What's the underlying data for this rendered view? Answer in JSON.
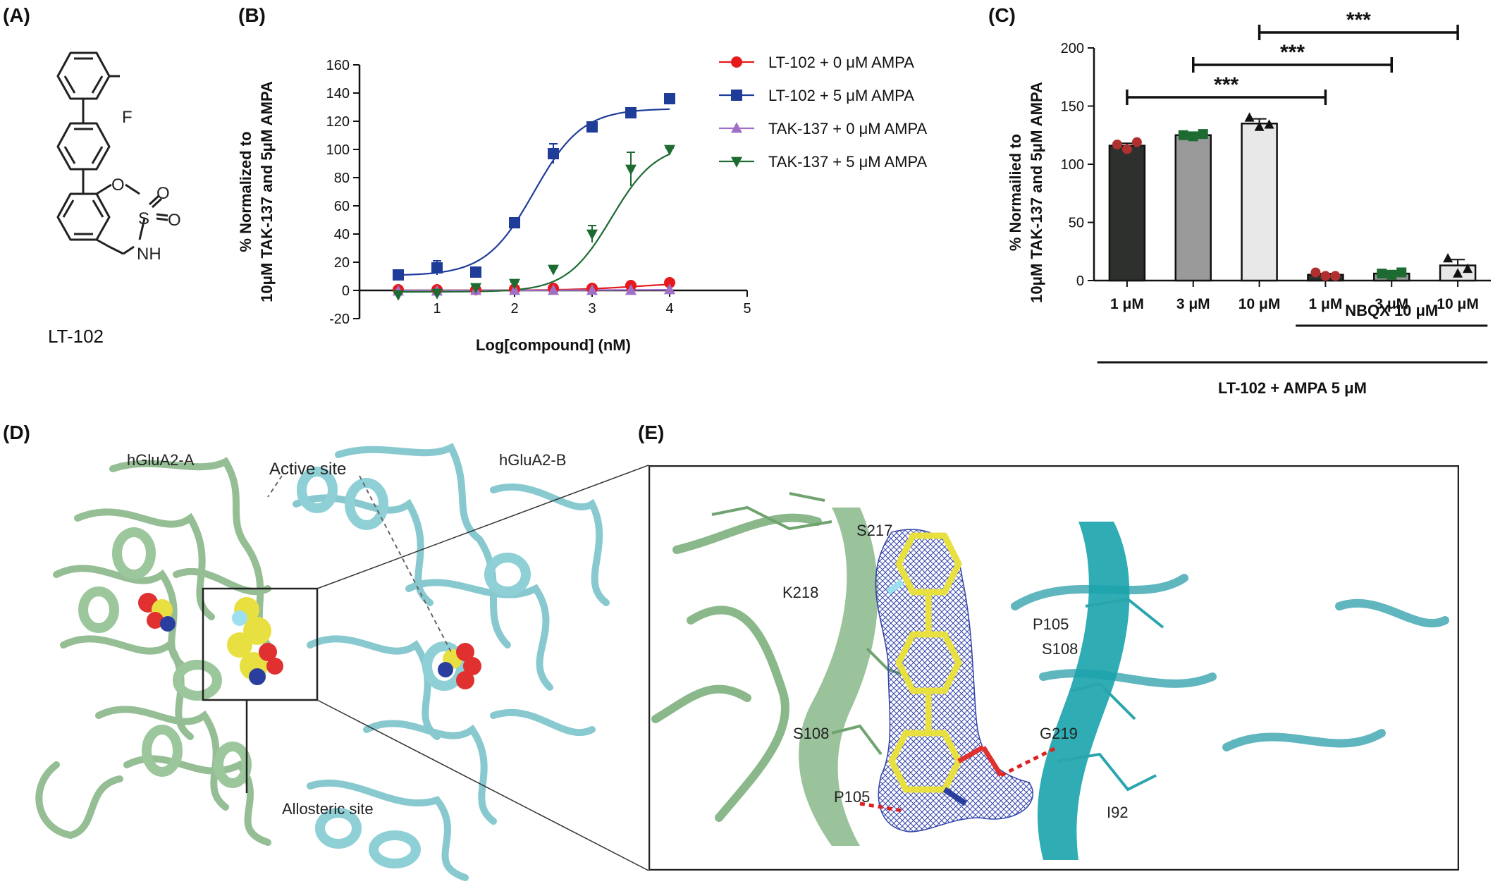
{
  "panels": {
    "A": {
      "label": "(A)",
      "compound_name": "LT-102",
      "atom_labels": {
        "F": "F",
        "O": "O",
        "S": "S",
        "O1": "O",
        "O2": "O",
        "NH": "NH"
      }
    },
    "B": {
      "label": "(B)"
    },
    "C": {
      "label": "(C)"
    },
    "D": {
      "label": "(D)",
      "subunit_a": "hGluA2-A",
      "subunit_b": "hGluA2-B",
      "active_site": "Active site",
      "allosteric_site": "Allosteric site"
    },
    "E": {
      "label": "(E)",
      "residues": [
        "S217",
        "K218",
        "P105",
        "S108",
        "S108",
        "G219",
        "P105",
        "I92"
      ]
    }
  },
  "chart_data": [
    {
      "type": "line",
      "panel": "B",
      "title": "",
      "xlabel": "Log[compound] (nM)",
      "ylabel": [
        "% Normalized to",
        "10μM TAK-137 and 5μM AMPA"
      ],
      "xlim": [
        0,
        5
      ],
      "ylim": [
        -20,
        160
      ],
      "xticks": [
        1,
        2,
        3,
        4,
        5
      ],
      "yticks": [
        -20,
        0,
        20,
        40,
        60,
        80,
        100,
        120,
        140,
        160
      ],
      "legend_position": "right",
      "series": [
        {
          "name": "LT-102 + 0 μM AMPA",
          "color": "#e41a1c",
          "marker": "circle",
          "x": [
            0.5,
            1.0,
            1.5,
            2.0,
            2.5,
            3.0,
            3.5,
            4.0
          ],
          "y": [
            0.5,
            0.5,
            0.5,
            1.0,
            1.5,
            1.5,
            3.5,
            5.5
          ],
          "fit": {
            "bottom": 0,
            "top": 6,
            "ec50_log": 3.6,
            "hill": 1
          }
        },
        {
          "name": "LT-102 + 5 μM AMPA",
          "color": "#1f3c99",
          "marker": "square",
          "x": [
            0.5,
            1.0,
            1.5,
            2.0,
            2.5,
            3.0,
            3.5,
            4.0
          ],
          "y": [
            11,
            16,
            13,
            48,
            97,
            116,
            126,
            136
          ],
          "err": [
            2,
            5,
            2,
            2,
            7,
            2,
            2,
            2
          ],
          "fit": {
            "bottom": 10.5,
            "top": 129,
            "ec50_log": 2.25,
            "hill": 1.4
          }
        },
        {
          "name": "TAK-137 + 0 μM AMPA",
          "color": "#a070c8",
          "marker": "triangle-up",
          "x": [
            0.5,
            1.0,
            1.5,
            2.0,
            2.5,
            3.0,
            3.5,
            4.0
          ],
          "y": [
            -0.5,
            -0.5,
            0,
            0,
            0,
            0,
            0,
            0.5
          ],
          "fit": {
            "bottom": 0,
            "top": 0.5,
            "ec50_log": 3,
            "hill": 1
          }
        },
        {
          "name": "TAK-137 + 5 μM AMPA",
          "color": "#1e6b32",
          "marker": "triangle-down",
          "x": [
            0.5,
            1.0,
            1.5,
            2.0,
            2.5,
            3.0,
            3.5,
            4.0
          ],
          "y": [
            -3,
            -2,
            2,
            5,
            15,
            40,
            86,
            100
          ],
          "err": [
            1,
            1,
            1,
            1,
            1,
            6,
            12,
            1
          ],
          "fit": {
            "bottom": -1,
            "top": 104,
            "ec50_log": 3.25,
            "hill": 1.5
          }
        }
      ]
    },
    {
      "type": "bar",
      "panel": "C",
      "title": "",
      "ylabel": [
        "% Normailied to",
        "10μM TAK-137 and 5μM AMPA"
      ],
      "ylim": [
        0,
        200
      ],
      "yticks": [
        0,
        50,
        100,
        150,
        200
      ],
      "categories": [
        "1 μM",
        "3 μM",
        "10 μM",
        "1 μM",
        "3 μM",
        "10 μM"
      ],
      "values": [
        116,
        125,
        135,
        5,
        6,
        13
      ],
      "errors": [
        2,
        2,
        4,
        1,
        1,
        5
      ],
      "bar_colors": [
        "#2d302d",
        "#9a9a9a",
        "#e8e8e8",
        "#2d302d",
        "#9a9a9a",
        "#e8e8e8"
      ],
      "points": [
        {
          "color": "#b03030",
          "shape": "circle",
          "values": [
            117,
            113,
            119
          ]
        },
        {
          "color": "#1e6b32",
          "shape": "square",
          "values": [
            125,
            124,
            126
          ]
        },
        {
          "color": "#111111",
          "shape": "triangle",
          "values": [
            140,
            132,
            134
          ]
        },
        {
          "color": "#b03030",
          "shape": "circle",
          "values": [
            7,
            4,
            4
          ]
        },
        {
          "color": "#1e6b32",
          "shape": "square",
          "values": [
            6,
            5,
            7
          ]
        },
        {
          "color": "#111111",
          "shape": "triangle",
          "values": [
            19,
            6,
            10
          ]
        }
      ],
      "significance": [
        {
          "from": 0,
          "to": 3,
          "label": "***"
        },
        {
          "from": 1,
          "to": 4,
          "label": "***"
        },
        {
          "from": 2,
          "to": 5,
          "label": "***"
        }
      ],
      "group_labels": [
        {
          "text": "NBQX 10 μM",
          "from": 3,
          "to": 5
        },
        {
          "text": "LT-102 + AMPA 5 μM",
          "from": 0,
          "to": 5
        }
      ]
    }
  ]
}
